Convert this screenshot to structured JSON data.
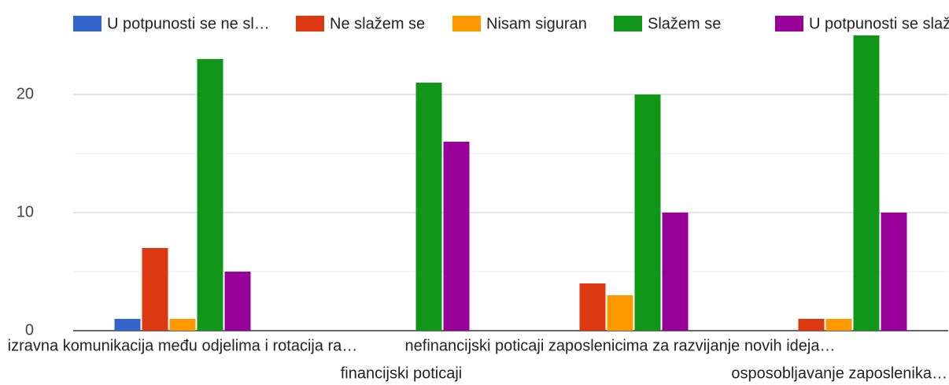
{
  "chart_data": {
    "type": "bar",
    "categories": [
      "izravna komunikacija među odjelima i rotacija ra…",
      "financijski poticaji",
      "nefinancijski poticaji zaposlenicima za razvijanje novih ideja…",
      "osposobljavanje zaposlenika…"
    ],
    "series": [
      {
        "name": "U potpunosti se ne sl…",
        "color": "#3366cc",
        "values": [
          1,
          0,
          0,
          0
        ]
      },
      {
        "name": "Ne slažem se",
        "color": "#dc3912",
        "values": [
          7,
          0,
          4,
          1
        ]
      },
      {
        "name": "Nisam siguran",
        "color": "#ff9900",
        "values": [
          1,
          0,
          3,
          1
        ]
      },
      {
        "name": "Slažem se",
        "color": "#109618",
        "values": [
          23,
          21,
          20,
          25
        ]
      },
      {
        "name": "U potpunosti se slažem",
        "color": "#990099",
        "values": [
          5,
          16,
          10,
          10
        ]
      }
    ],
    "ylim": [
      0,
      25
    ],
    "yticks": [
      0,
      10,
      20
    ],
    "minor_yticks": [
      5,
      15
    ],
    "grid": true,
    "legend": "top"
  }
}
